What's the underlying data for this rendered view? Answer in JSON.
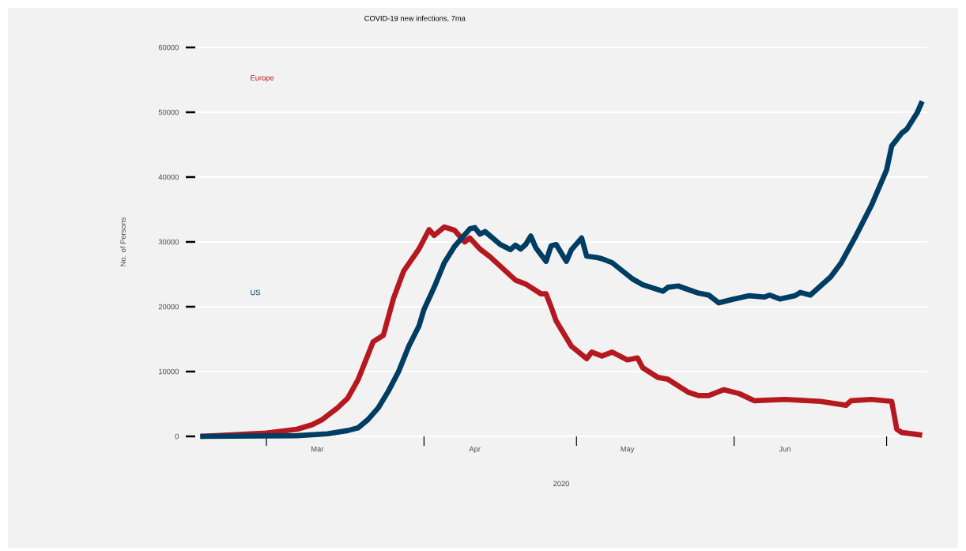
{
  "chart_data": {
    "type": "line",
    "title": "COVID-19 new infections, 7ma",
    "xlabel": "2020",
    "ylabel": "No. of Persons",
    "xlim": [
      "2020-02-16",
      "2020-07-09"
    ],
    "ylim": [
      0,
      60000
    ],
    "xticks": [
      {
        "value": "2020-03-01",
        "label": null
      },
      {
        "value": "2020-03-11",
        "label": "Mar"
      },
      {
        "value": "2020-04-01",
        "label": null
      },
      {
        "value": "2020-04-11",
        "label": "Apr"
      },
      {
        "value": "2020-05-01",
        "label": null
      },
      {
        "value": "2020-05-11",
        "label": "May"
      },
      {
        "value": "2020-06-01",
        "label": null
      },
      {
        "value": "2020-06-11",
        "label": "Jun"
      },
      {
        "value": "2020-07-01",
        "label": null
      }
    ],
    "yticks": [
      0,
      10000,
      20000,
      30000,
      40000,
      50000,
      60000
    ],
    "grid": "y",
    "line_style": "solid",
    "series": [
      {
        "name": "Europe",
        "color": "#b5191f",
        "x": [
          "2020-02-17",
          "2020-03-01",
          "2020-03-07",
          "2020-03-10",
          "2020-03-12",
          "2020-03-15",
          "2020-03-17",
          "2020-03-19",
          "2020-03-22",
          "2020-03-24",
          "2020-03-26",
          "2020-03-28",
          "2020-03-31",
          "2020-04-02",
          "2020-04-03",
          "2020-04-05",
          "2020-04-07",
          "2020-04-09",
          "2020-04-10",
          "2020-04-12",
          "2020-04-14",
          "2020-04-19",
          "2020-04-21",
          "2020-04-24",
          "2020-04-25",
          "2020-04-26",
          "2020-04-27",
          "2020-04-30",
          "2020-05-03",
          "2020-05-04",
          "2020-05-06",
          "2020-05-08",
          "2020-05-11",
          "2020-05-13",
          "2020-05-14",
          "2020-05-17",
          "2020-05-19",
          "2020-05-23",
          "2020-05-25",
          "2020-05-27",
          "2020-05-30",
          "2020-06-02",
          "2020-06-05",
          "2020-06-11",
          "2020-06-18",
          "2020-06-23",
          "2020-06-24",
          "2020-06-28",
          "2020-07-02",
          "2020-07-03",
          "2020-07-04",
          "2020-07-08"
        ],
        "values": [
          0,
          500,
          1100,
          1800,
          2600,
          4400,
          5900,
          8700,
          14600,
          15600,
          21300,
          25500,
          28900,
          31900,
          31000,
          32300,
          31800,
          30000,
          30600,
          28900,
          27700,
          24100,
          23500,
          22000,
          22000,
          20000,
          17800,
          13900,
          12000,
          13000,
          12400,
          13000,
          11800,
          12100,
          10600,
          9100,
          8800,
          6800,
          6300,
          6300,
          7200,
          6600,
          5500,
          5700,
          5400,
          4800,
          5500,
          5700,
          5400,
          1100,
          600,
          200
        ]
      },
      {
        "name": "US",
        "color": "#003d63",
        "x": [
          "2020-02-17",
          "2020-03-07",
          "2020-03-13",
          "2020-03-17",
          "2020-03-19",
          "2020-03-21",
          "2020-03-23",
          "2020-03-25",
          "2020-03-27",
          "2020-03-29",
          "2020-03-31",
          "2020-04-01",
          "2020-04-03",
          "2020-04-05",
          "2020-04-07",
          "2020-04-10",
          "2020-04-11",
          "2020-04-12",
          "2020-04-13",
          "2020-04-16",
          "2020-04-18",
          "2020-04-19",
          "2020-04-20",
          "2020-04-21",
          "2020-04-22",
          "2020-04-23",
          "2020-04-25",
          "2020-04-26",
          "2020-04-27",
          "2020-04-29",
          "2020-04-30",
          "2020-05-02",
          "2020-05-03",
          "2020-05-05",
          "2020-05-06",
          "2020-05-08",
          "2020-05-12",
          "2020-05-14",
          "2020-05-18",
          "2020-05-19",
          "2020-05-21",
          "2020-05-25",
          "2020-05-27",
          "2020-05-29",
          "2020-06-01",
          "2020-06-04",
          "2020-06-07",
          "2020-06-08",
          "2020-06-10",
          "2020-06-13",
          "2020-06-14",
          "2020-06-16",
          "2020-06-20",
          "2020-06-22",
          "2020-06-25",
          "2020-06-28",
          "2020-07-01",
          "2020-07-02",
          "2020-07-04",
          "2020-07-05",
          "2020-07-07",
          "2020-07-08"
        ],
        "values": [
          0,
          100,
          400,
          900,
          1300,
          2600,
          4400,
          7000,
          10000,
          13900,
          17000,
          19600,
          23000,
          26800,
          29300,
          32000,
          32200,
          31200,
          31600,
          29600,
          28800,
          29500,
          28900,
          29600,
          30900,
          29100,
          27000,
          29400,
          29600,
          27000,
          28800,
          30600,
          27800,
          27600,
          27400,
          26800,
          24300,
          23400,
          22400,
          23000,
          23200,
          22100,
          21800,
          20600,
          21200,
          21700,
          21500,
          21800,
          21200,
          21700,
          22200,
          21800,
          24600,
          26700,
          31000,
          35600,
          41100,
          44800,
          46800,
          47400,
          49900,
          51700
        ]
      }
    ]
  }
}
